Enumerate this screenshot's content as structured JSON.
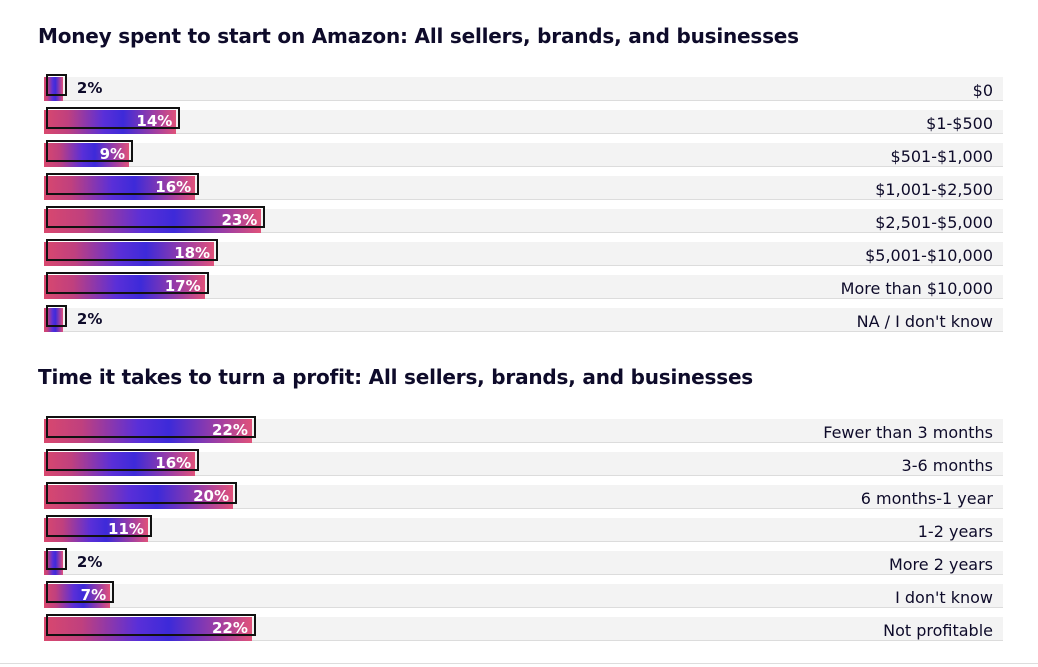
{
  "chart_data": [
    {
      "type": "bar",
      "orientation": "horizontal",
      "title": "Money spent to start on Amazon: All sellers, brands, and businesses",
      "categories": [
        "$0",
        "$1-$500",
        "$501-$1,000",
        "$1,001-$2,500",
        "$2,501-$5,000",
        "$5,001-$10,000",
        "More than $10,000",
        "NA / I don't know"
      ],
      "values": [
        2,
        14,
        9,
        16,
        23,
        18,
        17,
        2
      ],
      "labels": [
        "2%",
        "14%",
        "9%",
        "16%",
        "23%",
        "18%",
        "17%",
        "2%"
      ],
      "unit": "%"
    },
    {
      "type": "bar",
      "orientation": "horizontal",
      "title": "Time it takes to turn a profit: All sellers, brands, and businesses",
      "categories": [
        "Fewer than 3 months",
        "3-6 months",
        "6 months-1 year",
        "1-2 years",
        "More 2 years",
        "I don't know",
        "Not profitable"
      ],
      "values": [
        22,
        16,
        20,
        11,
        2,
        7,
        22
      ],
      "labels": [
        "22%",
        "16%",
        "20%",
        "11%",
        "2%",
        "7%",
        "22%"
      ],
      "unit": "%"
    }
  ],
  "colors": {
    "bar_start": "#d9486e",
    "bar_mid": "#3d2ad9",
    "text_dark": "#0e0b2a",
    "track": "#f3f3f3"
  }
}
